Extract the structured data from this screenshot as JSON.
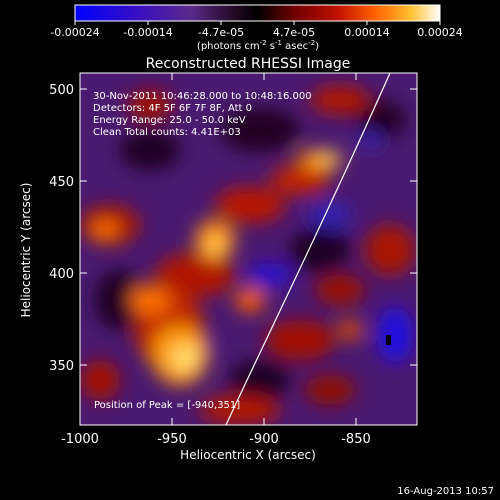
{
  "colorbar": {
    "ticks": [
      "-0.00024",
      "-0.00014",
      "-4.7e-05",
      "4.7e-05",
      "0.00014",
      "0.00024"
    ],
    "unit_prefix": "(photons cm",
    "unit_cm_exp": "-2",
    "unit_s": " s",
    "unit_s_exp": "-1",
    "unit_asec": " asec",
    "unit_asec_exp": "-2",
    "unit_suffix": ")",
    "colors": [
      "#0000ff",
      "#3010c0",
      "#5a2a8a",
      "#2a0a30",
      "#000000",
      "#5a0000",
      "#a00000",
      "#e03000",
      "#ff8000",
      "#ffd040",
      "#ffffff"
    ]
  },
  "image": {
    "title": "Reconstructed RHESSI Image",
    "info_lines": [
      "30-Nov-2011 10:46:28.000 to 10:48:16.000",
      "Detectors: 4F 5F 6F 7F 8F, Att 0",
      "Energy Range: 25.0 - 50.0 keV",
      "Clean    Total counts: 4.41E+03"
    ],
    "peak_label": "Position of Peak = [-940,351]",
    "xlabel": "Heliocentric X (arcsec)",
    "ylabel": "Heliocentric Y (arcsec)",
    "xticks": [
      "-1000",
      "-950",
      "-900",
      "-850"
    ],
    "yticks": [
      "500",
      "450",
      "400",
      "350"
    ],
    "timestamp": "16-Aug-2013 10:57"
  }
}
